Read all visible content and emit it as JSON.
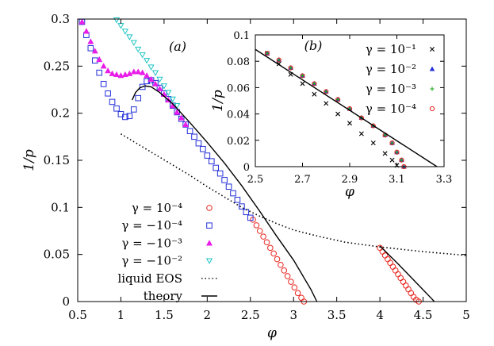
{
  "chart_data": [
    {
      "type": "scatter",
      "panel_label": "(a)",
      "xlabel": "φ",
      "ylabel": "1/p",
      "xlim": [
        0.5,
        5
      ],
      "ylim": [
        0,
        0.3
      ],
      "x_ticks": [
        "0.5",
        "1",
        "1.5",
        "2",
        "2.5",
        "3",
        "3.5",
        "4",
        "4.5",
        "5"
      ],
      "y_ticks": [
        "0",
        "0.05",
        "0.1",
        "0.15",
        "0.2",
        "0.25",
        "0.3"
      ],
      "grid": false,
      "legend_position": "bottom-left",
      "series": [
        {
          "name": "γ = 10⁻⁴",
          "marker": "circle",
          "color": "#e8251f",
          "points": [
            [
              2.53,
              0.087
            ],
            [
              2.57,
              0.081
            ],
            [
              2.61,
              0.075
            ],
            [
              2.65,
              0.069
            ],
            [
              2.69,
              0.063
            ],
            [
              2.73,
              0.057
            ],
            [
              2.77,
              0.051
            ],
            [
              2.81,
              0.045
            ],
            [
              2.85,
              0.039
            ],
            [
              2.89,
              0.033
            ],
            [
              2.93,
              0.027
            ],
            [
              2.97,
              0.021
            ],
            [
              3.01,
              0.015
            ],
            [
              3.05,
              0.009
            ],
            [
              3.09,
              0.004
            ],
            [
              3.12,
              0.0
            ],
            [
              4.0,
              0.057
            ],
            [
              4.03,
              0.053
            ],
            [
              4.06,
              0.049
            ],
            [
              4.09,
              0.045
            ],
            [
              4.12,
              0.041
            ],
            [
              4.15,
              0.037
            ],
            [
              4.18,
              0.033
            ],
            [
              4.21,
              0.029
            ],
            [
              4.24,
              0.025
            ],
            [
              4.27,
              0.021
            ],
            [
              4.3,
              0.017
            ],
            [
              4.33,
              0.013
            ],
            [
              4.36,
              0.009
            ],
            [
              4.39,
              0.005
            ],
            [
              4.42,
              0.002
            ],
            [
              4.45,
              0.0
            ]
          ]
        },
        {
          "name": "γ = −10⁻⁴",
          "marker": "square",
          "color": "#2330d8",
          "points": [
            [
              0.55,
              0.297
            ],
            [
              0.6,
              0.283
            ],
            [
              0.65,
              0.269
            ],
            [
              0.7,
              0.256
            ],
            [
              0.75,
              0.243
            ],
            [
              0.8,
              0.231
            ],
            [
              0.85,
              0.221
            ],
            [
              0.9,
              0.212
            ],
            [
              0.95,
              0.205
            ],
            [
              1.0,
              0.199
            ],
            [
              1.05,
              0.196
            ],
            [
              1.1,
              0.197
            ],
            [
              1.15,
              0.204
            ],
            [
              1.2,
              0.216
            ],
            [
              1.25,
              0.228
            ],
            [
              1.3,
              0.234
            ],
            [
              1.35,
              0.235
            ],
            [
              1.4,
              0.232
            ],
            [
              1.45,
              0.227
            ],
            [
              1.5,
              0.221
            ],
            [
              1.55,
              0.215
            ],
            [
              1.6,
              0.208
            ],
            [
              1.65,
              0.201
            ],
            [
              1.7,
              0.194
            ],
            [
              1.75,
              0.188
            ],
            [
              1.8,
              0.181
            ],
            [
              1.85,
              0.175
            ],
            [
              1.9,
              0.168
            ],
            [
              1.95,
              0.162
            ],
            [
              2.0,
              0.155
            ],
            [
              2.05,
              0.149
            ],
            [
              2.1,
              0.142
            ],
            [
              2.15,
              0.136
            ],
            [
              2.2,
              0.129
            ],
            [
              2.25,
              0.122
            ],
            [
              2.3,
              0.115
            ],
            [
              2.35,
              0.108
            ],
            [
              2.4,
              0.101
            ],
            [
              2.45,
              0.095
            ],
            [
              2.5,
              0.089
            ]
          ]
        },
        {
          "name": "γ = −10⁻³",
          "marker": "triangle-up",
          "color": "#e81ee8",
          "points": [
            [
              0.55,
              0.297
            ],
            [
              0.6,
              0.287
            ],
            [
              0.65,
              0.276
            ],
            [
              0.7,
              0.266
            ],
            [
              0.75,
              0.257
            ],
            [
              0.8,
              0.25
            ],
            [
              0.85,
              0.245
            ],
            [
              0.9,
              0.242
            ],
            [
              0.95,
              0.241
            ],
            [
              1.0,
              0.24
            ],
            [
              1.05,
              0.241
            ],
            [
              1.1,
              0.242
            ],
            [
              1.15,
              0.244
            ],
            [
              1.2,
              0.244
            ],
            [
              1.25,
              0.243
            ],
            [
              1.3,
              0.24
            ],
            [
              1.35,
              0.236
            ],
            [
              1.4,
              0.231
            ],
            [
              1.45,
              0.226
            ],
            [
              1.5,
              0.22
            ],
            [
              1.55,
              0.214
            ],
            [
              1.6,
              0.208
            ],
            [
              1.65,
              0.201
            ],
            [
              1.7,
              0.195
            ],
            [
              1.75,
              0.188
            ]
          ]
        },
        {
          "name": "γ = −10⁻²",
          "marker": "triangle-down",
          "color": "#1ec4c4",
          "points": [
            [
              0.95,
              0.299
            ],
            [
              1.0,
              0.293
            ],
            [
              1.05,
              0.287
            ],
            [
              1.1,
              0.281
            ],
            [
              1.15,
              0.275
            ],
            [
              1.2,
              0.268
            ],
            [
              1.25,
              0.262
            ],
            [
              1.3,
              0.256
            ],
            [
              1.35,
              0.249
            ],
            [
              1.4,
              0.243
            ],
            [
              1.45,
              0.236
            ],
            [
              1.5,
              0.229
            ],
            [
              1.55,
              0.222
            ],
            [
              1.6,
              0.215
            ],
            [
              1.65,
              0.208
            ]
          ]
        },
        {
          "name": "liquid EOS",
          "style": "dotted",
          "color": "#000000",
          "points": [
            [
              1.0,
              0.178
            ],
            [
              1.2,
              0.167
            ],
            [
              1.4,
              0.156
            ],
            [
              1.6,
              0.145
            ],
            [
              1.8,
              0.134
            ],
            [
              2.0,
              0.122
            ],
            [
              2.2,
              0.111
            ],
            [
              2.4,
              0.1
            ],
            [
              2.6,
              0.091
            ],
            [
              2.8,
              0.083
            ],
            [
              3.0,
              0.076
            ],
            [
              3.3,
              0.069
            ],
            [
              3.6,
              0.063
            ],
            [
              4.0,
              0.058
            ],
            [
              4.5,
              0.053
            ],
            [
              5.0,
              0.049
            ]
          ]
        },
        {
          "name": "theory",
          "style": "solid",
          "color": "#000000",
          "points": [
            [
              1.13,
              0.214
            ],
            [
              1.17,
              0.222
            ],
            [
              1.22,
              0.227
            ],
            [
              1.28,
              0.229
            ],
            [
              1.35,
              0.228
            ],
            [
              1.45,
              0.222
            ],
            [
              1.6,
              0.21
            ],
            [
              1.8,
              0.19
            ],
            [
              2.0,
              0.169
            ],
            [
              2.2,
              0.147
            ],
            [
              2.4,
              0.123
            ],
            [
              2.6,
              0.097
            ],
            [
              2.8,
              0.07
            ],
            [
              3.0,
              0.044
            ],
            [
              3.2,
              0.013
            ],
            [
              3.27,
              0.0
            ]
          ],
          "points_b": [
            [
              4.0,
              0.059
            ],
            [
              4.2,
              0.041
            ],
            [
              4.4,
              0.022
            ],
            [
              4.6,
              0.003
            ],
            [
              4.63,
              0.0
            ]
          ]
        }
      ]
    },
    {
      "type": "scatter",
      "panel_label": "(b)",
      "xlabel": "φ",
      "ylabel": "1/p",
      "xlim": [
        2.5,
        3.3
      ],
      "ylim": [
        0,
        0.1
      ],
      "x_ticks": [
        "2.5",
        "2.7",
        "2.9",
        "3.1",
        "3.3"
      ],
      "y_ticks": [
        "0",
        "0.02",
        "0.04",
        "0.06",
        "0.08",
        "0.1"
      ],
      "grid": false,
      "legend_position": "top-right",
      "series": [
        {
          "name": "γ = 10⁻¹",
          "marker": "cross",
          "color": "#000000",
          "points": [
            [
              2.55,
              0.086
            ],
            [
              2.6,
              0.078
            ],
            [
              2.65,
              0.07
            ],
            [
              2.7,
              0.063
            ],
            [
              2.75,
              0.055
            ],
            [
              2.8,
              0.048
            ],
            [
              2.85,
              0.04
            ],
            [
              2.9,
              0.033
            ],
            [
              2.95,
              0.025
            ],
            [
              3.0,
              0.018
            ],
            [
              3.05,
              0.01
            ],
            [
              3.08,
              0.005
            ],
            [
              3.1,
              0.001
            ]
          ]
        },
        {
          "name": "γ = 10⁻²",
          "marker": "triangle-up",
          "color": "#2330d8",
          "points": [
            [
              2.55,
              0.086
            ],
            [
              2.6,
              0.081
            ],
            [
              2.65,
              0.075
            ],
            [
              2.7,
              0.069
            ],
            [
              2.75,
              0.063
            ],
            [
              2.8,
              0.057
            ],
            [
              2.85,
              0.051
            ],
            [
              2.9,
              0.044
            ],
            [
              2.95,
              0.037
            ],
            [
              3.0,
              0.031
            ],
            [
              3.05,
              0.024
            ],
            [
              3.08,
              0.018
            ],
            [
              3.1,
              0.011
            ],
            [
              3.12,
              0.005
            ],
            [
              3.13,
              0.0
            ]
          ]
        },
        {
          "name": "γ = 10⁻³",
          "marker": "plus",
          "color": "#22a822",
          "points": [
            [
              2.55,
              0.086
            ],
            [
              2.6,
              0.081
            ],
            [
              2.65,
              0.075
            ],
            [
              2.7,
              0.069
            ],
            [
              2.75,
              0.063
            ],
            [
              2.8,
              0.057
            ],
            [
              2.85,
              0.051
            ],
            [
              2.9,
              0.044
            ],
            [
              2.95,
              0.037
            ],
            [
              3.0,
              0.031
            ],
            [
              3.05,
              0.024
            ],
            [
              3.08,
              0.018
            ],
            [
              3.1,
              0.011
            ],
            [
              3.12,
              0.005
            ],
            [
              3.13,
              0.0
            ]
          ]
        },
        {
          "name": "γ = 10⁻⁴",
          "marker": "circle",
          "color": "#e8251f",
          "points": [
            [
              2.55,
              0.086
            ],
            [
              2.6,
              0.081
            ],
            [
              2.65,
              0.075
            ],
            [
              2.7,
              0.069
            ],
            [
              2.75,
              0.063
            ],
            [
              2.8,
              0.057
            ],
            [
              2.85,
              0.051
            ],
            [
              2.9,
              0.044
            ],
            [
              2.95,
              0.037
            ],
            [
              3.0,
              0.031
            ],
            [
              3.05,
              0.024
            ],
            [
              3.08,
              0.018
            ],
            [
              3.1,
              0.011
            ],
            [
              3.12,
              0.005
            ],
            [
              3.13,
              0.0
            ]
          ]
        },
        {
          "name": "theory",
          "style": "solid",
          "color": "#000000",
          "points": [
            [
              2.5,
              0.089
            ],
            [
              3.27,
              0.0
            ]
          ]
        }
      ]
    }
  ]
}
